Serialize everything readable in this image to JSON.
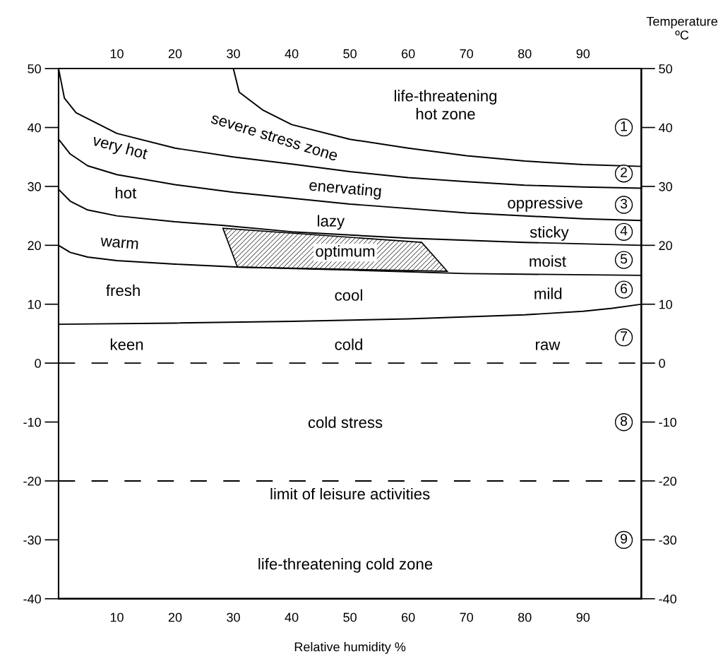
{
  "chart_data": {
    "type": "line",
    "xlabel": "Relative humidity %",
    "y2label": "Temperature\nºC",
    "xlim": [
      0,
      100
    ],
    "xticks": [
      10,
      20,
      30,
      40,
      50,
      60,
      70,
      80,
      90
    ],
    "x2lim": [
      0,
      100
    ],
    "x2ticks": [
      10,
      20,
      30,
      40,
      50,
      60,
      70,
      80,
      90
    ],
    "ylim": [
      -40,
      50
    ],
    "yticks": [
      -40,
      -30,
      -20,
      -10,
      0,
      10,
      20,
      30,
      40,
      50
    ],
    "y2lim": [
      -40,
      50
    ],
    "y2ticks": [
      -40,
      -30,
      -20,
      -10,
      0,
      10,
      20,
      30,
      40,
      50
    ],
    "grid": false,
    "legend": false,
    "marker": "none",
    "line_style": "solid",
    "series": [
      {
        "color": "#000000",
        "x": [
          30,
          31,
          35,
          40,
          50,
          60,
          70,
          80,
          90,
          100
        ],
        "values": [
          50,
          46,
          43,
          40.5,
          38,
          36.5,
          35.2,
          34.3,
          33.7,
          33.4
        ]
      },
      {
        "color": "#000000",
        "x": [
          0,
          1,
          3,
          10,
          20,
          30,
          40,
          50,
          60,
          70,
          80,
          90,
          100
        ],
        "values": [
          50,
          45,
          42.5,
          39,
          36.5,
          35,
          33.8,
          32.5,
          31.5,
          30.8,
          30.2,
          29.9,
          29.7
        ]
      },
      {
        "color": "#000000",
        "x": [
          0,
          2,
          5,
          10,
          20,
          30,
          50,
          70,
          90,
          100
        ],
        "values": [
          38,
          35.5,
          33.5,
          32,
          30.3,
          29,
          27,
          25.5,
          24.5,
          24.2
        ]
      },
      {
        "color": "#000000",
        "x": [
          0,
          2,
          5,
          10,
          20,
          28,
          40,
          60,
          80,
          100
        ],
        "values": [
          29.5,
          27.5,
          26,
          25,
          24,
          23.4,
          22.3,
          21.2,
          20.5,
          20
        ]
      },
      {
        "color": "#000000",
        "x": [
          0,
          2,
          5,
          10,
          20,
          31,
          50,
          70,
          100
        ],
        "values": [
          20,
          18.8,
          18,
          17.4,
          16.8,
          16.3,
          15.8,
          15.2,
          14.9
        ]
      },
      {
        "color": "#000000",
        "x": [
          0,
          20,
          40,
          60,
          80,
          90,
          95,
          100
        ],
        "values": [
          6.6,
          6.8,
          7.1,
          7.5,
          8.2,
          8.8,
          9.3,
          10
        ]
      },
      {
        "type": "area",
        "color": "#000000",
        "x": [
          28.2,
          30.7,
          66.7,
          62.3
        ],
        "values": [
          22.9,
          16.3,
          15.6,
          20.5
        ]
      }
    ],
    "ref_lines": [
      {
        "axis": "y",
        "value": 0,
        "line_style": "dashed",
        "color": "#000000"
      },
      {
        "axis": "y",
        "value": -20,
        "line_style": "dashed",
        "color": "#000000",
        "label": "limit of leisure activities"
      }
    ],
    "annotations": [
      "life-threatening\nhot zone",
      "severe stress zone",
      "very hot",
      "enervating",
      "hot",
      "oppressive",
      "lazy",
      "sticky",
      "warm",
      "optimum",
      "moist",
      "fresh",
      "cool",
      "mild",
      "keen",
      "cold",
      "raw",
      "cold stress",
      "life-threatening cold zone",
      "1",
      "2",
      "3",
      "4",
      "5",
      "6",
      "7",
      "8",
      "9"
    ]
  }
}
